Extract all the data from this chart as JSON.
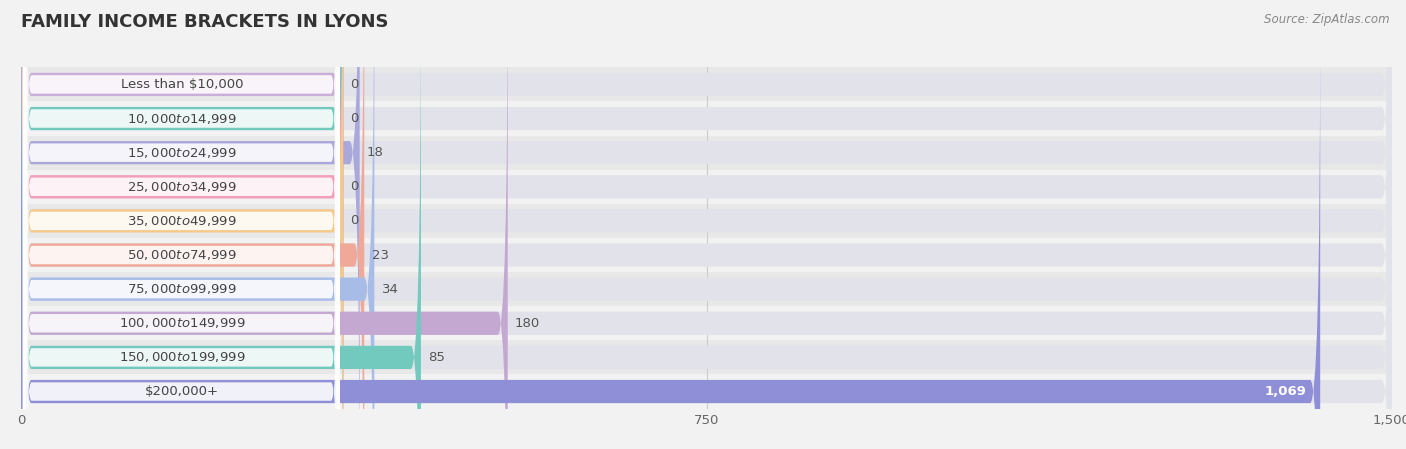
{
  "title": "FAMILY INCOME BRACKETS IN LYONS",
  "source": "Source: ZipAtlas.com",
  "categories": [
    "Less than $10,000",
    "$10,000 to $14,999",
    "$15,000 to $24,999",
    "$25,000 to $34,999",
    "$35,000 to $49,999",
    "$50,000 to $74,999",
    "$75,000 to $99,999",
    "$100,000 to $149,999",
    "$150,000 to $199,999",
    "$200,000+"
  ],
  "values": [
    0,
    0,
    18,
    0,
    0,
    23,
    34,
    180,
    85,
    1069
  ],
  "bar_colors": [
    "#c9aed6",
    "#72c9be",
    "#aaa8da",
    "#f49db8",
    "#f5c98a",
    "#f0a898",
    "#a8bce8",
    "#c4a8d2",
    "#72c9be",
    "#8f8fd8"
  ],
  "xlim": [
    0,
    1500
  ],
  "xticks": [
    0,
    750,
    1500
  ],
  "background_color": "#f2f2f2",
  "row_bg_light": "#f2f2f2",
  "row_bg_dark": "#e8e8e8",
  "bar_bg_color": "#e2e2ea",
  "title_fontsize": 13,
  "label_fontsize": 9.5,
  "value_fontsize": 9.5
}
